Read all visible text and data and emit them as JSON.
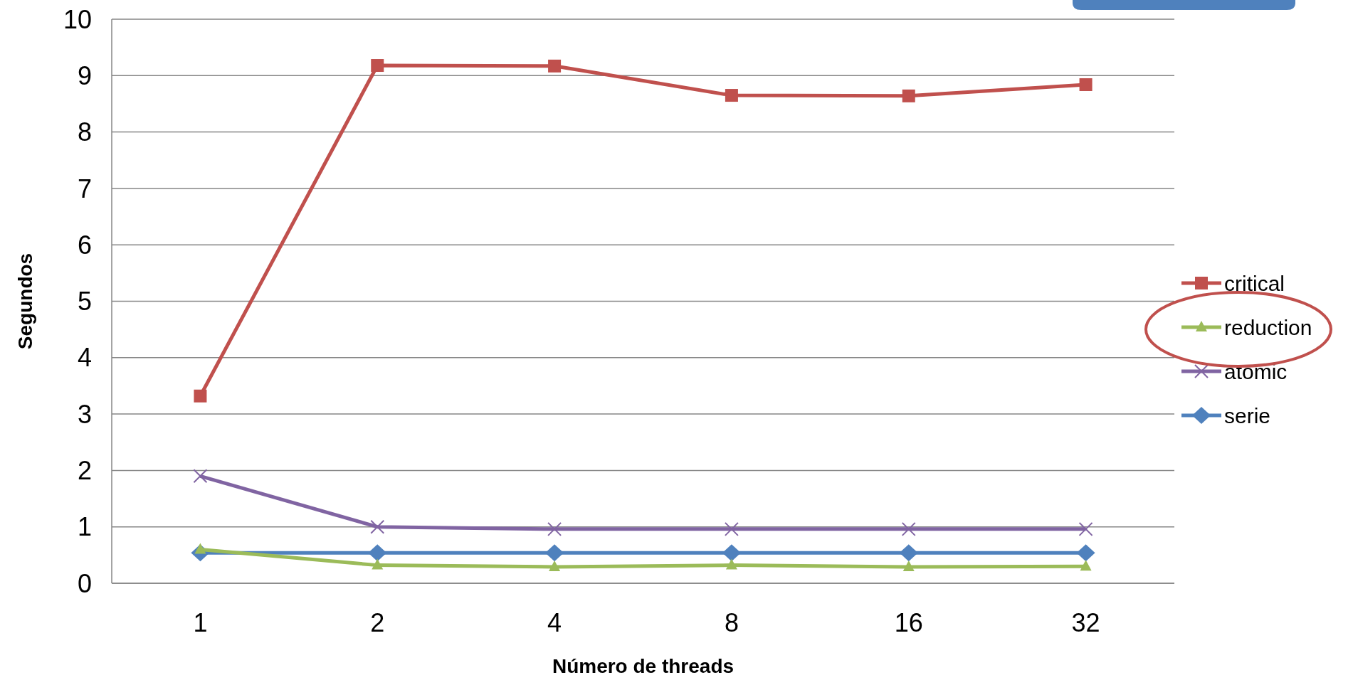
{
  "chart_data": {
    "type": "line",
    "xlabel": "Número de threads",
    "ylabel": "Segundos",
    "categories": [
      "1",
      "2",
      "4",
      "8",
      "16",
      "32"
    ],
    "ylim": [
      0,
      10
    ],
    "yticks": [
      0,
      1,
      2,
      3,
      4,
      5,
      6,
      7,
      8,
      9,
      10
    ],
    "grid": "y",
    "legend": "right",
    "series": [
      {
        "name": "critical",
        "color": "#c0504d",
        "marker": "square",
        "values": [
          3.32,
          9.18,
          9.17,
          8.65,
          8.64,
          8.84
        ]
      },
      {
        "name": "reduction",
        "color": "#9bbb59",
        "marker": "triangle",
        "values": [
          0.6,
          0.32,
          0.29,
          0.32,
          0.29,
          0.3
        ]
      },
      {
        "name": "atomic",
        "color": "#8064a2",
        "marker": "cross",
        "values": [
          1.9,
          1.0,
          0.96,
          0.96,
          0.96,
          0.96
        ]
      },
      {
        "name": "serie",
        "color": "#4f81bd",
        "marker": "diamond",
        "values": [
          0.54,
          0.54,
          0.54,
          0.54,
          0.54,
          0.54
        ]
      }
    ]
  }
}
